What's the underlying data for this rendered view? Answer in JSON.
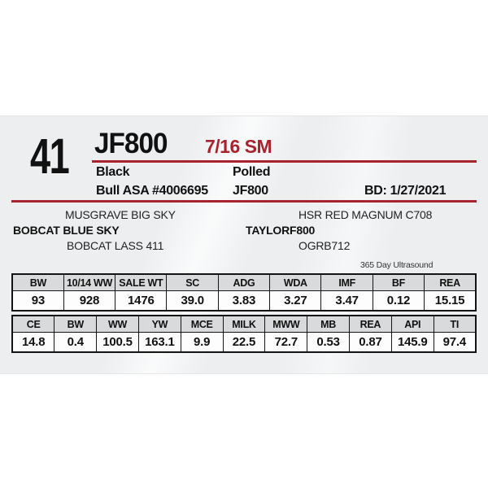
{
  "colors": {
    "accent_red": "#a8232e",
    "page_gray": "#eceef0",
    "table_header_gray": "#d9dadb"
  },
  "header": {
    "lot_number": "41",
    "animal_id": "JF800",
    "breed": "7/16 SM",
    "coat_color": "Black",
    "horn_status": "Polled",
    "registration": "Bull ASA #4006695",
    "tattoo": "JF800",
    "birth_date": "BD: 1/27/2021"
  },
  "pedigree": {
    "sire_line": {
      "grandsire": "MUSGRAVE BIG SKY",
      "sire": "BOBCAT BLUE SKY",
      "granddam": "BOBCAT LASS 411"
    },
    "dam_line": {
      "grandsire": "HSR RED MAGNUM C708",
      "dam": "TAYLORF800",
      "granddam": "OGRB712"
    }
  },
  "ultrasound_note": "365 Day Ultrasound",
  "tables": [
    {
      "name": "performance-data",
      "headers": [
        "BW",
        "10/14 WW",
        "SALE WT",
        "SC",
        "ADG",
        "WDA",
        "IMF",
        "BF",
        "REA"
      ],
      "values": [
        "93",
        "928",
        "1476",
        "39.0",
        "3.83",
        "3.27",
        "3.47",
        "0.12",
        "15.15"
      ]
    },
    {
      "name": "epd-data",
      "headers": [
        "CE",
        "BW",
        "WW",
        "YW",
        "MCE",
        "MILK",
        "MWW",
        "MB",
        "REA",
        "API",
        "TI"
      ],
      "values": [
        "14.8",
        "0.4",
        "100.5",
        "163.1",
        "9.9",
        "22.5",
        "72.7",
        "0.53",
        "0.87",
        "145.9",
        "97.4"
      ]
    }
  ]
}
